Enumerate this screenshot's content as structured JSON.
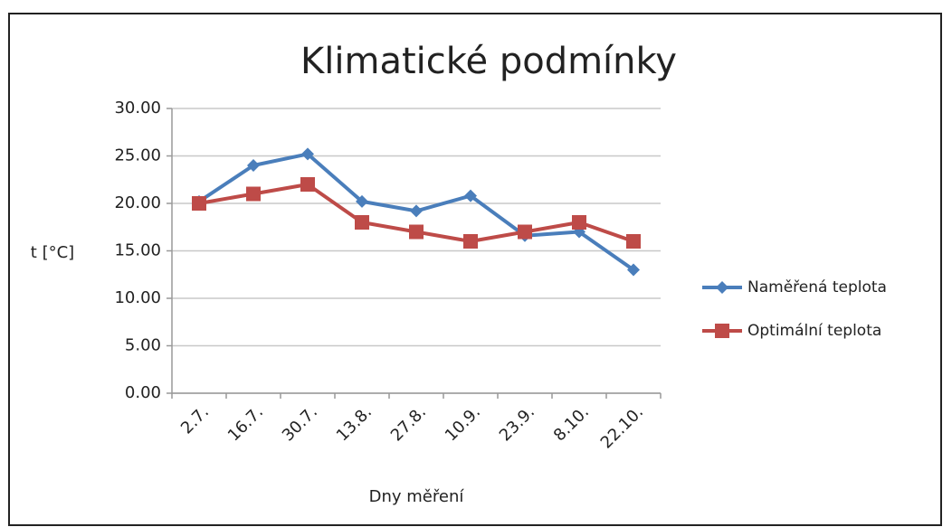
{
  "chart_data": {
    "type": "line",
    "title": "Klimatické podmínky",
    "x_label": "Dny měření",
    "y_label": "t [°C]",
    "categories": [
      "2.7.",
      "16.7.",
      "30.7.",
      "13.8.",
      "27.8.",
      "10.9.",
      "23.9.",
      "8.10.",
      "22.10."
    ],
    "series": [
      {
        "name": "Naměřená teplota",
        "color": "#4a7ebb",
        "marker": "diamond",
        "values": [
          20.2,
          24,
          25.2,
          20.2,
          19.2,
          20.8,
          16.6,
          17,
          13
        ]
      },
      {
        "name": "Optimální teplota",
        "color": "#be4b48",
        "marker": "square",
        "values": [
          20,
          21,
          22,
          18,
          17,
          16,
          17,
          18,
          16
        ]
      }
    ],
    "ylim": [
      0,
      30
    ],
    "yticks": [
      {
        "value": 0,
        "label": "0.00"
      },
      {
        "value": 5,
        "label": "5.00"
      },
      {
        "value": 10,
        "label": "10.00"
      },
      {
        "value": 15,
        "label": "15.00"
      },
      {
        "value": 20,
        "label": "20.00"
      },
      {
        "value": 25,
        "label": "25.00"
      },
      {
        "value": 30,
        "label": "30.00"
      }
    ],
    "grid": true,
    "legend": "right"
  }
}
